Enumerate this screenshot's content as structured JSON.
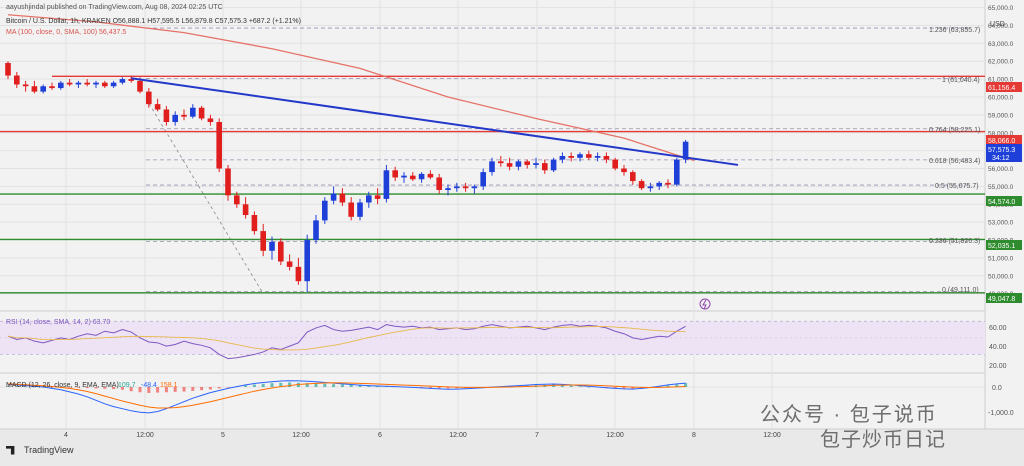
{
  "header": {
    "author_line": "aayushjindal published on TradingView.com, Aug 08, 2024 02:25 UTC",
    "symbol_line": "Bitcoin / U.S. Dollar, 1h, KRAKEN  O56,888.1  H57,595.5  L56,879.8  C57,575.3  +687.2 (+1.21%)",
    "ma_line": "MA (100, close, 0, SMA, 100)  56,437.5",
    "currency": "USD"
  },
  "fib_labels": [
    "1.236 (63,855.7)",
    "1 (61,040.4)",
    "0.764 (58,225.1)",
    "0.618 (56,483.4)",
    "0.5 (55,075.7)",
    "0.236 (51,926.3)",
    "0 (49,111.0)"
  ],
  "price_badges": [
    {
      "text": "61,156.4",
      "color": "#e53935"
    },
    {
      "text": "58,066.0",
      "color": "#e53935"
    },
    {
      "text": "57,575.3",
      "color": "#1e40d8"
    },
    {
      "text": "34:12",
      "color": "#1e40d8"
    },
    {
      "text": "54,574.0",
      "color": "#2e8b2e"
    },
    {
      "text": "52,035.1",
      "color": "#2e8b2e"
    },
    {
      "text": "49,047.8",
      "color": "#2e8b2e"
    }
  ],
  "rsi": {
    "label": "RSI (14, close, SMA, 14, 2)  63.70",
    "values": [
      "60.00",
      "40.00",
      "20.00"
    ]
  },
  "macd": {
    "label": "MACD (12, 26, close, 9, EMA, EMA)",
    "v1": "109.7",
    "v2": "-48.4",
    "v3": "158.1",
    "zero": "0.0",
    "neg": "-1,000.0"
  },
  "x_ticks": [
    "4",
    "12:00",
    "5",
    "12:00",
    "6",
    "12:00",
    "7",
    "12:00",
    "8",
    "12:00"
  ],
  "footer": {
    "brand": "TradingView"
  },
  "watermark": {
    "line1": "公众号 · 包子说币",
    "line2": "包子炒币日记"
  },
  "chart_data": {
    "type": "candlestick",
    "title": "Bitcoin / U.S. Dollar, 1h, KRAKEN",
    "ylabel": "USD",
    "ylim": [
      48200,
      65200
    ],
    "y_ticks": [
      49000,
      50000,
      51000,
      52000,
      53000,
      54000,
      55000,
      56000,
      57000,
      58000,
      59000,
      60000,
      61000,
      62000,
      63000,
      64000,
      65000
    ],
    "candles": [
      [
        61900,
        62000,
        61000,
        61200
      ],
      [
        61200,
        61400,
        60500,
        60700
      ],
      [
        60700,
        60900,
        60300,
        60600
      ],
      [
        60600,
        60900,
        60200,
        60300
      ],
      [
        60300,
        60700,
        60200,
        60600
      ],
      [
        60600,
        60800,
        60400,
        60500
      ],
      [
        60500,
        60900,
        60400,
        60800
      ],
      [
        60800,
        61000,
        60600,
        60700
      ],
      [
        60700,
        60900,
        60500,
        60800
      ],
      [
        60800,
        61000,
        60600,
        60700
      ],
      [
        60700,
        60900,
        60500,
        60800
      ],
      [
        60800,
        60900,
        60500,
        60600
      ],
      [
        60600,
        60900,
        60500,
        60800
      ],
      [
        60800,
        61100,
        60700,
        61000
      ],
      [
        61000,
        61200,
        60800,
        60900
      ],
      [
        60900,
        61100,
        60200,
        60300
      ],
      [
        60300,
        60500,
        59400,
        59600
      ],
      [
        59600,
        59900,
        59200,
        59300
      ],
      [
        59300,
        59500,
        58400,
        58600
      ],
      [
        58600,
        59200,
        58400,
        59000
      ],
      [
        59000,
        59300,
        58700,
        58900
      ],
      [
        58900,
        59600,
        58800,
        59400
      ],
      [
        59400,
        59500,
        58700,
        58800
      ],
      [
        58800,
        59000,
        58400,
        58600
      ],
      [
        58600,
        58800,
        55800,
        56000
      ],
      [
        56000,
        56200,
        54200,
        54500
      ],
      [
        54500,
        54700,
        53800,
        54000
      ],
      [
        54000,
        54400,
        53200,
        53400
      ],
      [
        53400,
        53600,
        52300,
        52500
      ],
      [
        52500,
        52900,
        51100,
        51400
      ],
      [
        51400,
        52200,
        50900,
        51900
      ],
      [
        51900,
        52100,
        50600,
        50800
      ],
      [
        50800,
        51200,
        50300,
        50500
      ],
      [
        50500,
        51000,
        49500,
        49700
      ],
      [
        49700,
        52300,
        49100,
        52000
      ],
      [
        52000,
        53400,
        51800,
        53100
      ],
      [
        53100,
        54400,
        52900,
        54200
      ],
      [
        54200,
        55000,
        54000,
        54600
      ],
      [
        54600,
        54900,
        53900,
        54100
      ],
      [
        54100,
        54400,
        53100,
        53300
      ],
      [
        53300,
        54300,
        53100,
        54100
      ],
      [
        54100,
        54700,
        53800,
        54500
      ],
      [
        54500,
        54900,
        54000,
        54300
      ],
      [
        54300,
        56200,
        54100,
        55900
      ],
      [
        55900,
        56100,
        55300,
        55500
      ],
      [
        55500,
        55800,
        55200,
        55600
      ],
      [
        55600,
        55800,
        55300,
        55400
      ],
      [
        55400,
        55800,
        55200,
        55700
      ],
      [
        55700,
        55900,
        55400,
        55500
      ],
      [
        55500,
        55700,
        54600,
        54800
      ],
      [
        54800,
        55100,
        54500,
        54900
      ],
      [
        54900,
        55200,
        54700,
        55000
      ],
      [
        55000,
        55200,
        54700,
        54900
      ],
      [
        54900,
        55100,
        54600,
        55000
      ],
      [
        55000,
        56000,
        54800,
        55800
      ],
      [
        55800,
        56600,
        55600,
        56400
      ],
      [
        56400,
        56700,
        56100,
        56300
      ],
      [
        56300,
        56600,
        55900,
        56100
      ],
      [
        56100,
        56500,
        55900,
        56400
      ],
      [
        56400,
        56500,
        56000,
        56200
      ],
      [
        56200,
        56600,
        56000,
        56300
      ],
      [
        56300,
        56500,
        55700,
        55900
      ],
      [
        55900,
        56600,
        55800,
        56500
      ],
      [
        56500,
        56900,
        56300,
        56700
      ],
      [
        56700,
        56900,
        56400,
        56600
      ],
      [
        56600,
        56900,
        56400,
        56800
      ],
      [
        56800,
        57000,
        56500,
        56600
      ],
      [
        56600,
        56900,
        56400,
        56700
      ],
      [
        56700,
        56900,
        56300,
        56500
      ],
      [
        56500,
        56600,
        55900,
        56000
      ],
      [
        56000,
        56200,
        55600,
        55800
      ],
      [
        55800,
        55900,
        55100,
        55300
      ],
      [
        55300,
        55400,
        54800,
        54900
      ],
      [
        54900,
        55200,
        54700,
        55000
      ],
      [
        55000,
        55300,
        54800,
        55200
      ],
      [
        55200,
        55400,
        54900,
        55100
      ],
      [
        55100,
        56600,
        55000,
        56500
      ],
      [
        56500,
        57600,
        56300,
        57500
      ]
    ],
    "sma100": [
      [
        0,
        64600
      ],
      [
        10,
        64200
      ],
      [
        20,
        63600
      ],
      [
        30,
        62700
      ],
      [
        40,
        61600
      ],
      [
        50,
        60000
      ],
      [
        60,
        58800
      ],
      [
        70,
        57700
      ],
      [
        78,
        56440
      ]
    ],
    "trendline": [
      [
        14,
        61050
      ],
      [
        78,
        56300
      ]
    ],
    "horizontal_lines": [
      {
        "value": 61156.4,
        "color": "#e53935"
      },
      {
        "value": 58066.0,
        "color": "#e53935"
      },
      {
        "value": 54574.0,
        "color": "#2e8b2e"
      },
      {
        "value": 52035.1,
        "color": "#2e8b2e"
      },
      {
        "value": 49047.8,
        "color": "#2e8b2e"
      }
    ],
    "fib_levels": [
      {
        "ratio": "1.236",
        "value": 63855.7
      },
      {
        "ratio": "1",
        "value": 61040.4
      },
      {
        "ratio": "0.764",
        "value": 58225.1
      },
      {
        "ratio": "0.618",
        "value": 56483.4
      },
      {
        "ratio": "0.5",
        "value": 55075.7
      },
      {
        "ratio": "0.236",
        "value": 51926.3
      },
      {
        "ratio": "0",
        "value": 49111.0
      }
    ],
    "rsi_series": [
      52,
      48,
      50,
      46,
      44,
      47,
      50,
      48,
      52,
      55,
      53,
      58,
      56,
      60,
      57,
      50,
      45,
      44,
      40,
      42,
      46,
      43,
      41,
      38,
      30,
      25,
      26,
      28,
      30,
      33,
      38,
      36,
      40,
      44,
      57,
      62,
      65,
      60,
      58,
      59,
      61,
      63,
      60,
      66,
      64,
      63,
      64,
      62,
      63,
      60,
      61,
      62,
      60,
      61,
      64,
      66,
      64,
      62,
      63,
      64,
      62,
      60,
      63,
      65,
      66,
      64,
      65,
      64,
      62,
      58,
      55,
      50,
      48,
      50,
      52,
      51,
      58,
      64
    ],
    "macd_hist": [
      20,
      18,
      10,
      5,
      0,
      -5,
      -10,
      -15,
      -20,
      -30,
      -40,
      -50,
      -60,
      -80,
      -120,
      -150,
      -170,
      -160,
      -150,
      -140,
      -130,
      -110,
      -90,
      -70,
      -40,
      -10,
      20,
      50,
      70,
      90,
      110,
      120,
      130,
      120,
      110,
      100,
      90,
      80,
      70,
      60,
      50,
      40,
      30,
      20,
      10,
      0,
      -10,
      -20,
      -30,
      -35,
      -40,
      -35,
      -30,
      -20,
      -10,
      0,
      10,
      20,
      30,
      40,
      50,
      60,
      70,
      60,
      40,
      20,
      0,
      -10,
      -20,
      -30,
      -40,
      -50,
      -40,
      -20,
      10,
      40,
      70,
      110
    ],
    "macd_line": [
      80,
      60,
      40,
      20,
      0,
      -40,
      -80,
      -140,
      -200,
      -280,
      -380,
      -480,
      -560,
      -620,
      -680,
      -720,
      -740,
      -700,
      -620,
      -520,
      -420,
      -320,
      -240,
      -160,
      -100,
      -40,
      10,
      60,
      100,
      130,
      150,
      170,
      180,
      175,
      165,
      150,
      130,
      110,
      90,
      70,
      55,
      40,
      30,
      20,
      10,
      0,
      -10,
      -25,
      -40,
      -55,
      -65,
      -60,
      -50,
      -35,
      -20,
      -5,
      10,
      25,
      40,
      55,
      70,
      80,
      85,
      75,
      60,
      40,
      20,
      0,
      -20,
      -40,
      -55,
      -60,
      -40,
      -15,
      20,
      60,
      90,
      110
    ],
    "signal_line": [
      90,
      80,
      65,
      50,
      35,
      15,
      -10,
      -40,
      -80,
      -130,
      -190,
      -260,
      -330,
      -400,
      -460,
      -520,
      -570,
      -600,
      -600,
      -590,
      -560,
      -520,
      -470,
      -420,
      -360,
      -300,
      -240,
      -180,
      -120,
      -70,
      -30,
      10,
      40,
      70,
      90,
      105,
      115,
      120,
      118,
      112,
      105,
      95,
      85,
      75,
      65,
      55,
      45,
      35,
      25,
      15,
      5,
      -5,
      -10,
      -12,
      -12,
      -10,
      -5,
      0,
      8,
      16,
      25,
      35,
      45,
      52,
      56,
      56,
      52,
      45,
      35,
      22,
      10,
      -2,
      -10,
      -14,
      -12,
      -5,
      5,
      15
    ]
  }
}
